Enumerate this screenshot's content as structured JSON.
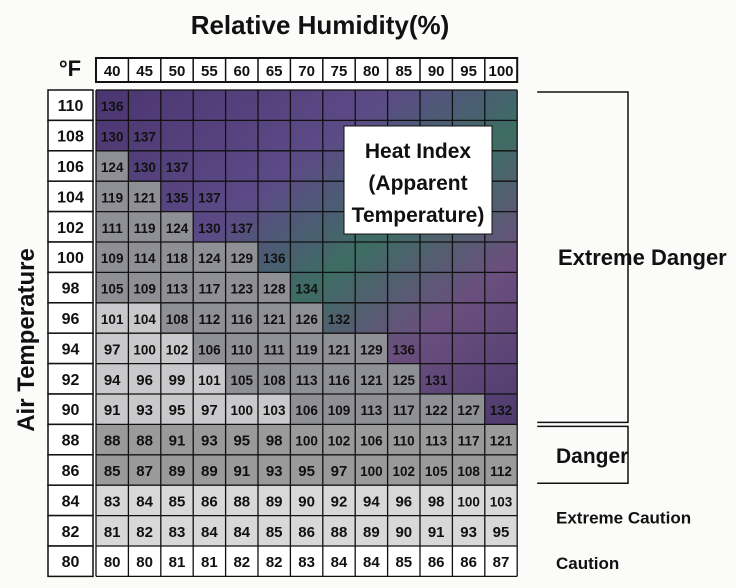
{
  "chart_data": {
    "type": "table",
    "title": "Relative Humidity(%)",
    "corner_label": "°F",
    "ylabel": "Air Temperature",
    "columns": [
      "40",
      "45",
      "50",
      "55",
      "60",
      "65",
      "70",
      "75",
      "80",
      "85",
      "90",
      "95",
      "100"
    ],
    "rows": [
      {
        "temp": "110",
        "values": [
          "136",
          "",
          "",
          "",
          "",
          "",
          "",
          "",
          "",
          "",
          "",
          "",
          ""
        ]
      },
      {
        "temp": "108",
        "values": [
          "130",
          "137",
          "",
          "",
          "",
          "",
          "",
          "",
          "",
          "",
          "",
          "",
          ""
        ]
      },
      {
        "temp": "106",
        "values": [
          "124",
          "130",
          "137",
          "",
          "",
          "",
          "",
          "",
          "",
          "",
          "",
          "",
          ""
        ]
      },
      {
        "temp": "104",
        "values": [
          "119",
          "121",
          "135",
          "137",
          "",
          "",
          "",
          "",
          "",
          "",
          "",
          "",
          ""
        ]
      },
      {
        "temp": "102",
        "values": [
          "111",
          "119",
          "124",
          "130",
          "137",
          "",
          "",
          "",
          "",
          "",
          "",
          "",
          ""
        ]
      },
      {
        "temp": "100",
        "values": [
          "109",
          "114",
          "118",
          "124",
          "129",
          "136",
          "",
          "",
          "",
          "",
          "",
          "",
          ""
        ]
      },
      {
        "temp": "98",
        "values": [
          "105",
          "109",
          "113",
          "117",
          "123",
          "128",
          "134",
          "",
          "",
          "",
          "",
          "",
          ""
        ]
      },
      {
        "temp": "96",
        "values": [
          "101",
          "104",
          "108",
          "112",
          "116",
          "121",
          "126",
          "132",
          "",
          "",
          "",
          "",
          ""
        ]
      },
      {
        "temp": "94",
        "values": [
          "97",
          "100",
          "102",
          "106",
          "110",
          "111",
          "119",
          "121",
          "129",
          "136",
          "",
          "",
          ""
        ]
      },
      {
        "temp": "92",
        "values": [
          "94",
          "96",
          "99",
          "101",
          "105",
          "108",
          "113",
          "116",
          "121",
          "125",
          "131",
          "",
          ""
        ]
      },
      {
        "temp": "90",
        "values": [
          "91",
          "93",
          "95",
          "97",
          "100",
          "103",
          "106",
          "109",
          "113",
          "117",
          "122",
          "127",
          "132"
        ]
      },
      {
        "temp": "88",
        "values": [
          "88",
          "88",
          "91",
          "93",
          "95",
          "98",
          "100",
          "102",
          "106",
          "110",
          "113",
          "117",
          "121"
        ]
      },
      {
        "temp": "86",
        "values": [
          "85",
          "87",
          "89",
          "89",
          "91",
          "93",
          "95",
          "97",
          "100",
          "102",
          "105",
          "108",
          "112"
        ]
      },
      {
        "temp": "84",
        "values": [
          "83",
          "84",
          "85",
          "86",
          "88",
          "89",
          "90",
          "92",
          "94",
          "96",
          "98",
          "100",
          "103"
        ]
      },
      {
        "temp": "82",
        "values": [
          "81",
          "82",
          "83",
          "84",
          "84",
          "85",
          "86",
          "88",
          "89",
          "90",
          "91",
          "93",
          "95"
        ]
      },
      {
        "temp": "80",
        "values": [
          "80",
          "80",
          "81",
          "81",
          "82",
          "82",
          "83",
          "84",
          "84",
          "85",
          "86",
          "86",
          "87"
        ]
      }
    ],
    "callout": [
      "Heat Index",
      "(Apparent",
      "Temperature)"
    ],
    "categories": [
      {
        "label": "Extreme Danger",
        "from_temp": "110",
        "to_temp": "90",
        "color": "#5a3a78"
      },
      {
        "label": "Danger",
        "from_temp": "88",
        "to_temp": "86",
        "color": "#9a9a9a"
      },
      {
        "label": "Extreme Caution",
        "from_temp": "84",
        "to_temp": "82",
        "color": "#d8d8d8"
      },
      {
        "label": "Caution",
        "from_temp": "80",
        "to_temp": "80",
        "color": "#ffffff"
      }
    ],
    "colors": {
      "extreme_danger": "#5a3a78",
      "extreme_danger_alt": "#3f6e60",
      "danger": "#9a9a9a",
      "extreme_caution": "#d8d8d8",
      "caution": "#ffffff",
      "grid": "#111111"
    }
  }
}
